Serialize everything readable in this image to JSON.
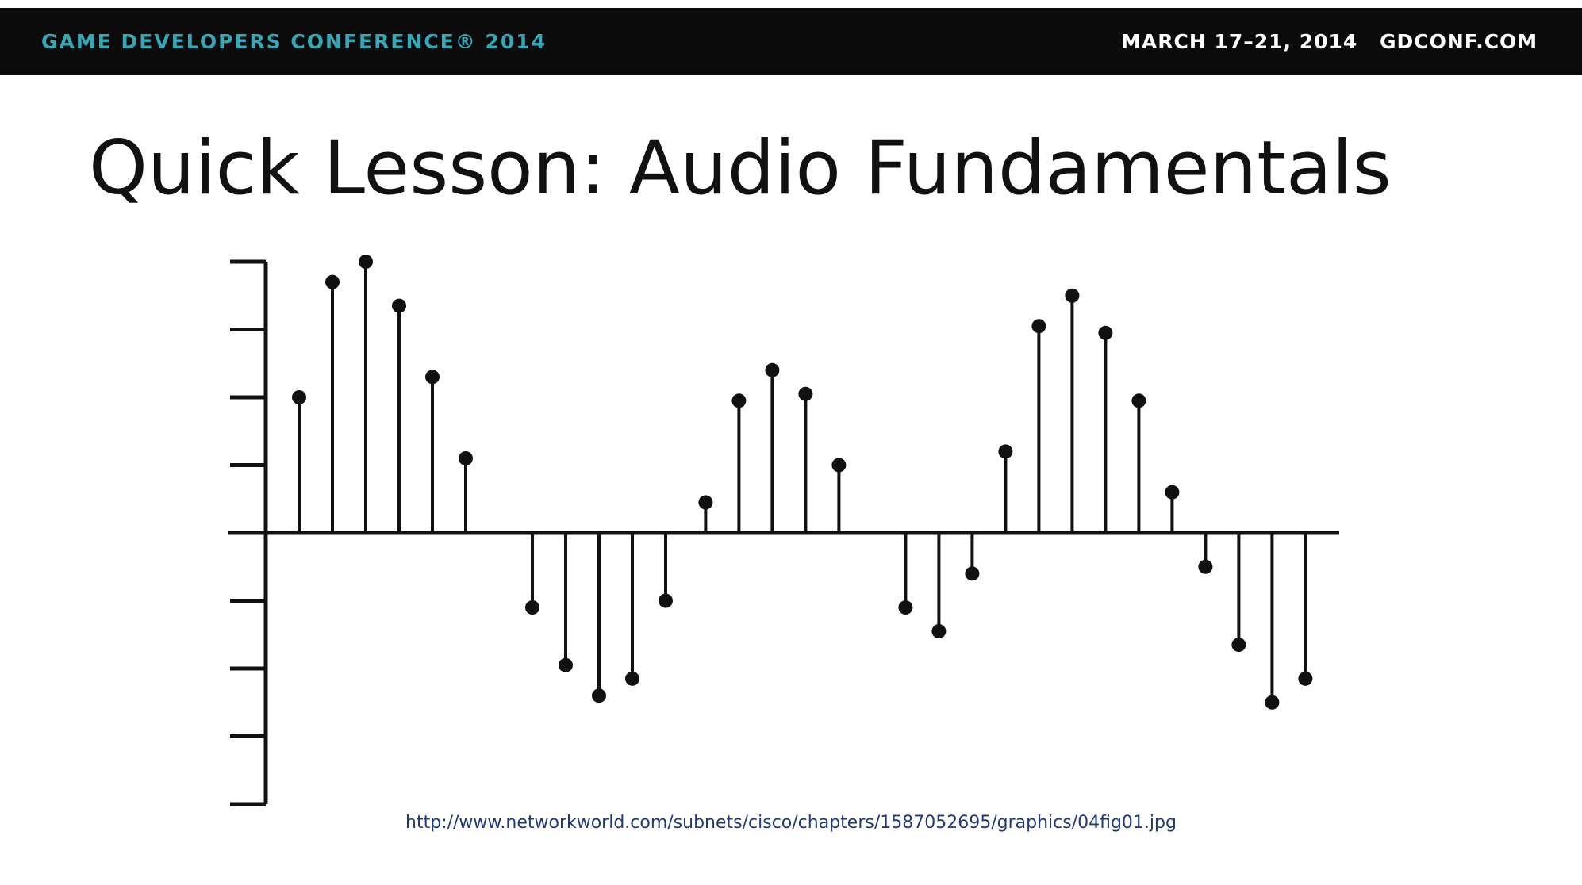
{
  "header": {
    "conference": "GAME DEVELOPERS CONFERENCE® 2014",
    "dates": "MARCH 17–21, 2014",
    "site": "GDCONF.COM",
    "conference_color": "#35a7b6"
  },
  "slide": {
    "title": "Quick Lesson: Audio Fundamentals",
    "source_url": "http://www.networkworld.com/subnets/cisco/chapters/1587052695/graphics/04fig01.jpg"
  },
  "chart_data": {
    "type": "stem",
    "ylim": [
      -4,
      4
    ],
    "yticks": [
      -4,
      -3,
      -2,
      -1,
      1,
      2,
      3,
      4
    ],
    "grid": false,
    "samples": [
      {
        "x": 1,
        "y": 2.0
      },
      {
        "x": 2,
        "y": 3.7
      },
      {
        "x": 3,
        "y": 4.0
      },
      {
        "x": 4,
        "y": 3.35
      },
      {
        "x": 5,
        "y": 2.3
      },
      {
        "x": 6,
        "y": 1.1
      },
      {
        "x": 8,
        "y": -1.1
      },
      {
        "x": 9,
        "y": -1.95
      },
      {
        "x": 10,
        "y": -2.4
      },
      {
        "x": 11,
        "y": -2.15
      },
      {
        "x": 12,
        "y": -1.0
      },
      {
        "x": 13.2,
        "y": 0.45
      },
      {
        "x": 14.2,
        "y": 1.95
      },
      {
        "x": 15.2,
        "y": 2.4
      },
      {
        "x": 16.2,
        "y": 2.05
      },
      {
        "x": 17.2,
        "y": 1.0
      },
      {
        "x": 19.2,
        "y": -1.1
      },
      {
        "x": 20.2,
        "y": -1.45
      },
      {
        "x": 21.2,
        "y": -0.6
      },
      {
        "x": 22.2,
        "y": 1.2
      },
      {
        "x": 23.2,
        "y": 3.05
      },
      {
        "x": 24.2,
        "y": 3.5
      },
      {
        "x": 25.2,
        "y": 2.95
      },
      {
        "x": 26.2,
        "y": 1.95
      },
      {
        "x": 27.2,
        "y": 0.6
      },
      {
        "x": 28.2,
        "y": -0.5
      },
      {
        "x": 29.2,
        "y": -1.65
      },
      {
        "x": 30.2,
        "y": -2.5
      },
      {
        "x": 31.2,
        "y": -2.15
      }
    ]
  }
}
